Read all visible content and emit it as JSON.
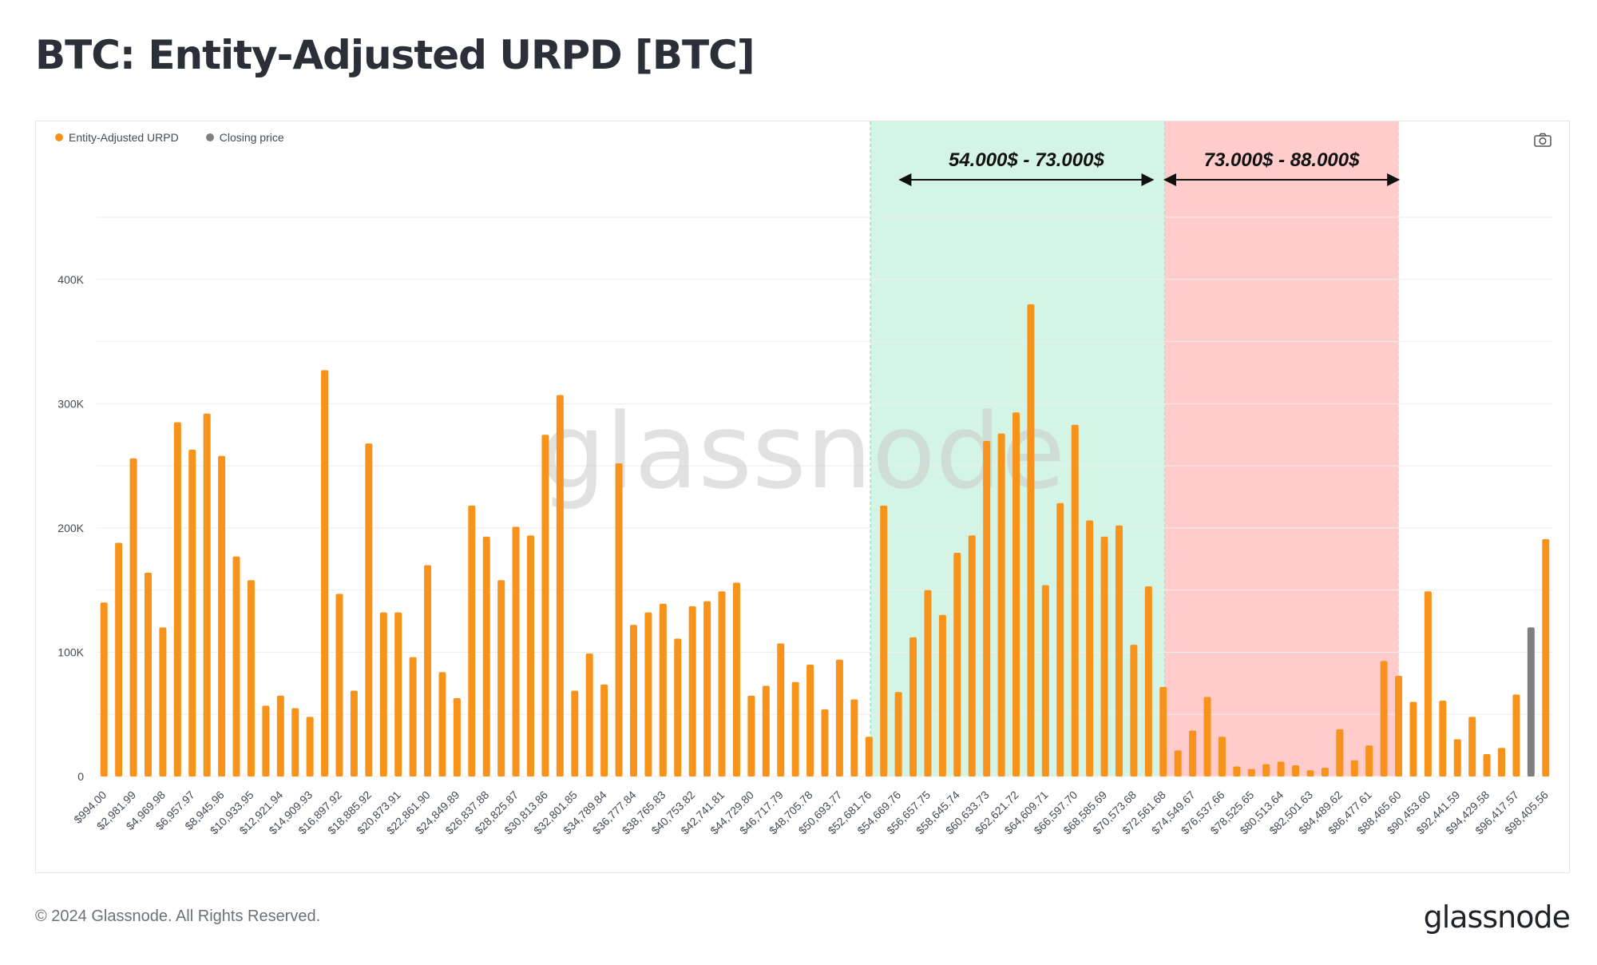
{
  "page_title": "BTC: Entity-Adjusted URPD [BTC]",
  "footer": {
    "copyright": "© 2024 Glassnode. All Rights Reserved.",
    "logo": "glassnode"
  },
  "watermark": "glassnode",
  "icons": {
    "screenshot": "camera-icon"
  },
  "colors": {
    "bar": "#f7931a",
    "closing_price_bar": "#808080",
    "green_zone": "#d4f5e6",
    "red_zone": "#ffcbcb",
    "grid": "#eceef1"
  },
  "chart_data": {
    "type": "bar",
    "legend": [
      {
        "label": "Entity-Adjusted URPD",
        "color": "#f7931a"
      },
      {
        "label": "Closing price",
        "color": "#808080"
      }
    ],
    "ylim": [
      0,
      450000
    ],
    "yticks": [
      {
        "value": 0,
        "label": "0"
      },
      {
        "value": 100000,
        "label": "100K"
      },
      {
        "value": 200000,
        "label": "200K"
      },
      {
        "value": 300000,
        "label": "300K"
      },
      {
        "value": 400000,
        "label": "400K"
      }
    ],
    "xtick_labels": [
      "$994.00",
      "$2,981.99",
      "$4,969.98",
      "$6,957.97",
      "$8,945.96",
      "$10,933.95",
      "$12,921.94",
      "$14,909.93",
      "$16,897.92",
      "$18,885.92",
      "$20,873.91",
      "$22,861.90",
      "$24,849.89",
      "$26,837.88",
      "$28,825.87",
      "$30,813.86",
      "$32,801.85",
      "$34,789.84",
      "$36,777.84",
      "$38,765.83",
      "$40,753.82",
      "$42,741.81",
      "$44,729.80",
      "$46,717.79",
      "$48,705.78",
      "$50,693.77",
      "$52,681.76",
      "$54,669.76",
      "$56,657.75",
      "$58,645.74",
      "$60,633.73",
      "$62,621.72",
      "$64,609.71",
      "$66,597.70",
      "$68,585.69",
      "$70,573.68",
      "$72,561.68",
      "$74,549.67",
      "$76,537.66",
      "$78,525.65",
      "$80,513.64",
      "$82,501.63",
      "$84,489.62",
      "$86,477.61",
      "$88,465.60",
      "$90,453.60",
      "$92,441.59",
      "$94,429.58",
      "$96,417.57",
      "$98,405.56"
    ],
    "values": [
      140000,
      188000,
      256000,
      164000,
      120000,
      285000,
      263000,
      292000,
      258000,
      177000,
      158000,
      57000,
      65000,
      55000,
      48000,
      327000,
      147000,
      69000,
      268000,
      132000,
      132000,
      96000,
      170000,
      84000,
      63000,
      218000,
      193000,
      158000,
      201000,
      194000,
      275000,
      307000,
      69000,
      99000,
      74000,
      252000,
      122000,
      132000,
      139000,
      111000,
      137000,
      141000,
      149000,
      156000,
      65000,
      73000,
      107000,
      76000,
      90000,
      54000,
      94000,
      62000,
      32000,
      218000,
      68000,
      112000,
      150000,
      130000,
      180000,
      194000,
      270000,
      276000,
      293000,
      380000,
      154000,
      220000,
      283000,
      206000,
      193000,
      202000,
      106000,
      153000,
      72000,
      21000,
      37000,
      64000,
      32000,
      8000,
      6000,
      10000,
      12000,
      9000,
      5000,
      7000,
      38000,
      13000,
      25000,
      93000,
      81000,
      60000,
      149000,
      61000,
      30000,
      48000,
      18000,
      23000,
      66000,
      120000,
      191000
    ],
    "closing_price_index": 97,
    "zones": [
      {
        "label": "54.000$ - 73.000$",
        "from_index": 52.6,
        "to_index": 72.6,
        "color": "#d4f5e6"
      },
      {
        "label": "73.000$ - 88.000$",
        "from_index": 72.6,
        "to_index": 88.5,
        "color": "#ffcbcb"
      }
    ]
  }
}
